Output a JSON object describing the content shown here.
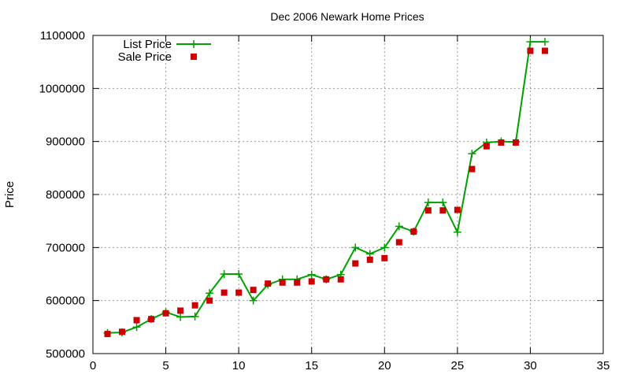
{
  "chart_data": {
    "type": "line",
    "title": "Dec 2006 Newark Home Prices",
    "xlabel": "",
    "ylabel": "Price",
    "xlim": [
      0,
      35
    ],
    "ylim": [
      500000,
      1100000
    ],
    "x_ticks": [
      0,
      5,
      10,
      15,
      20,
      25,
      30,
      35
    ],
    "y_ticks": [
      500000,
      600000,
      700000,
      800000,
      900000,
      1000000,
      1100000
    ],
    "grid": true,
    "legend_position": "top-left",
    "series": [
      {
        "name": "List Price",
        "style": "line-with-plus-markers",
        "color": "#00a000",
        "points": [
          [
            1,
            539000
          ],
          [
            2,
            540000
          ],
          [
            3,
            550000
          ],
          [
            4,
            565000
          ],
          [
            5,
            578000
          ],
          [
            6,
            569000
          ],
          [
            7,
            570000
          ],
          [
            8,
            614000
          ],
          [
            9,
            650000
          ],
          [
            10,
            650000
          ],
          [
            11,
            600000
          ],
          [
            12,
            630000
          ],
          [
            13,
            640000
          ],
          [
            14,
            640000
          ],
          [
            15,
            649000
          ],
          [
            16,
            640000
          ],
          [
            17,
            649000
          ],
          [
            18,
            700000
          ],
          [
            19,
            688000
          ],
          [
            20,
            700000
          ],
          [
            21,
            740000
          ],
          [
            22,
            730000
          ],
          [
            23,
            785000
          ],
          [
            24,
            785000
          ],
          [
            25,
            729000
          ],
          [
            26,
            877000
          ],
          [
            27,
            898000
          ],
          [
            28,
            900000
          ],
          [
            29,
            899000
          ],
          [
            30,
            1088000
          ],
          [
            31,
            1088000
          ]
        ]
      },
      {
        "name": "Sale Price",
        "style": "square-points",
        "color": "#cc0000",
        "points": [
          [
            1,
            537000
          ],
          [
            2,
            541000
          ],
          [
            3,
            563000
          ],
          [
            4,
            565000
          ],
          [
            5,
            576000
          ],
          [
            6,
            581000
          ],
          [
            7,
            591000
          ],
          [
            8,
            600000
          ],
          [
            9,
            615000
          ],
          [
            10,
            615000
          ],
          [
            11,
            620000
          ],
          [
            12,
            632000
          ],
          [
            13,
            634000
          ],
          [
            14,
            634000
          ],
          [
            15,
            636000
          ],
          [
            16,
            640000
          ],
          [
            17,
            640000
          ],
          [
            18,
            670000
          ],
          [
            19,
            677000
          ],
          [
            20,
            680000
          ],
          [
            21,
            710000
          ],
          [
            22,
            730000
          ],
          [
            23,
            770000
          ],
          [
            24,
            770000
          ],
          [
            25,
            771000
          ],
          [
            26,
            848000
          ],
          [
            27,
            891000
          ],
          [
            28,
            898000
          ],
          [
            29,
            898000
          ],
          [
            30,
            1071000
          ],
          [
            31,
            1071000
          ]
        ]
      }
    ]
  }
}
